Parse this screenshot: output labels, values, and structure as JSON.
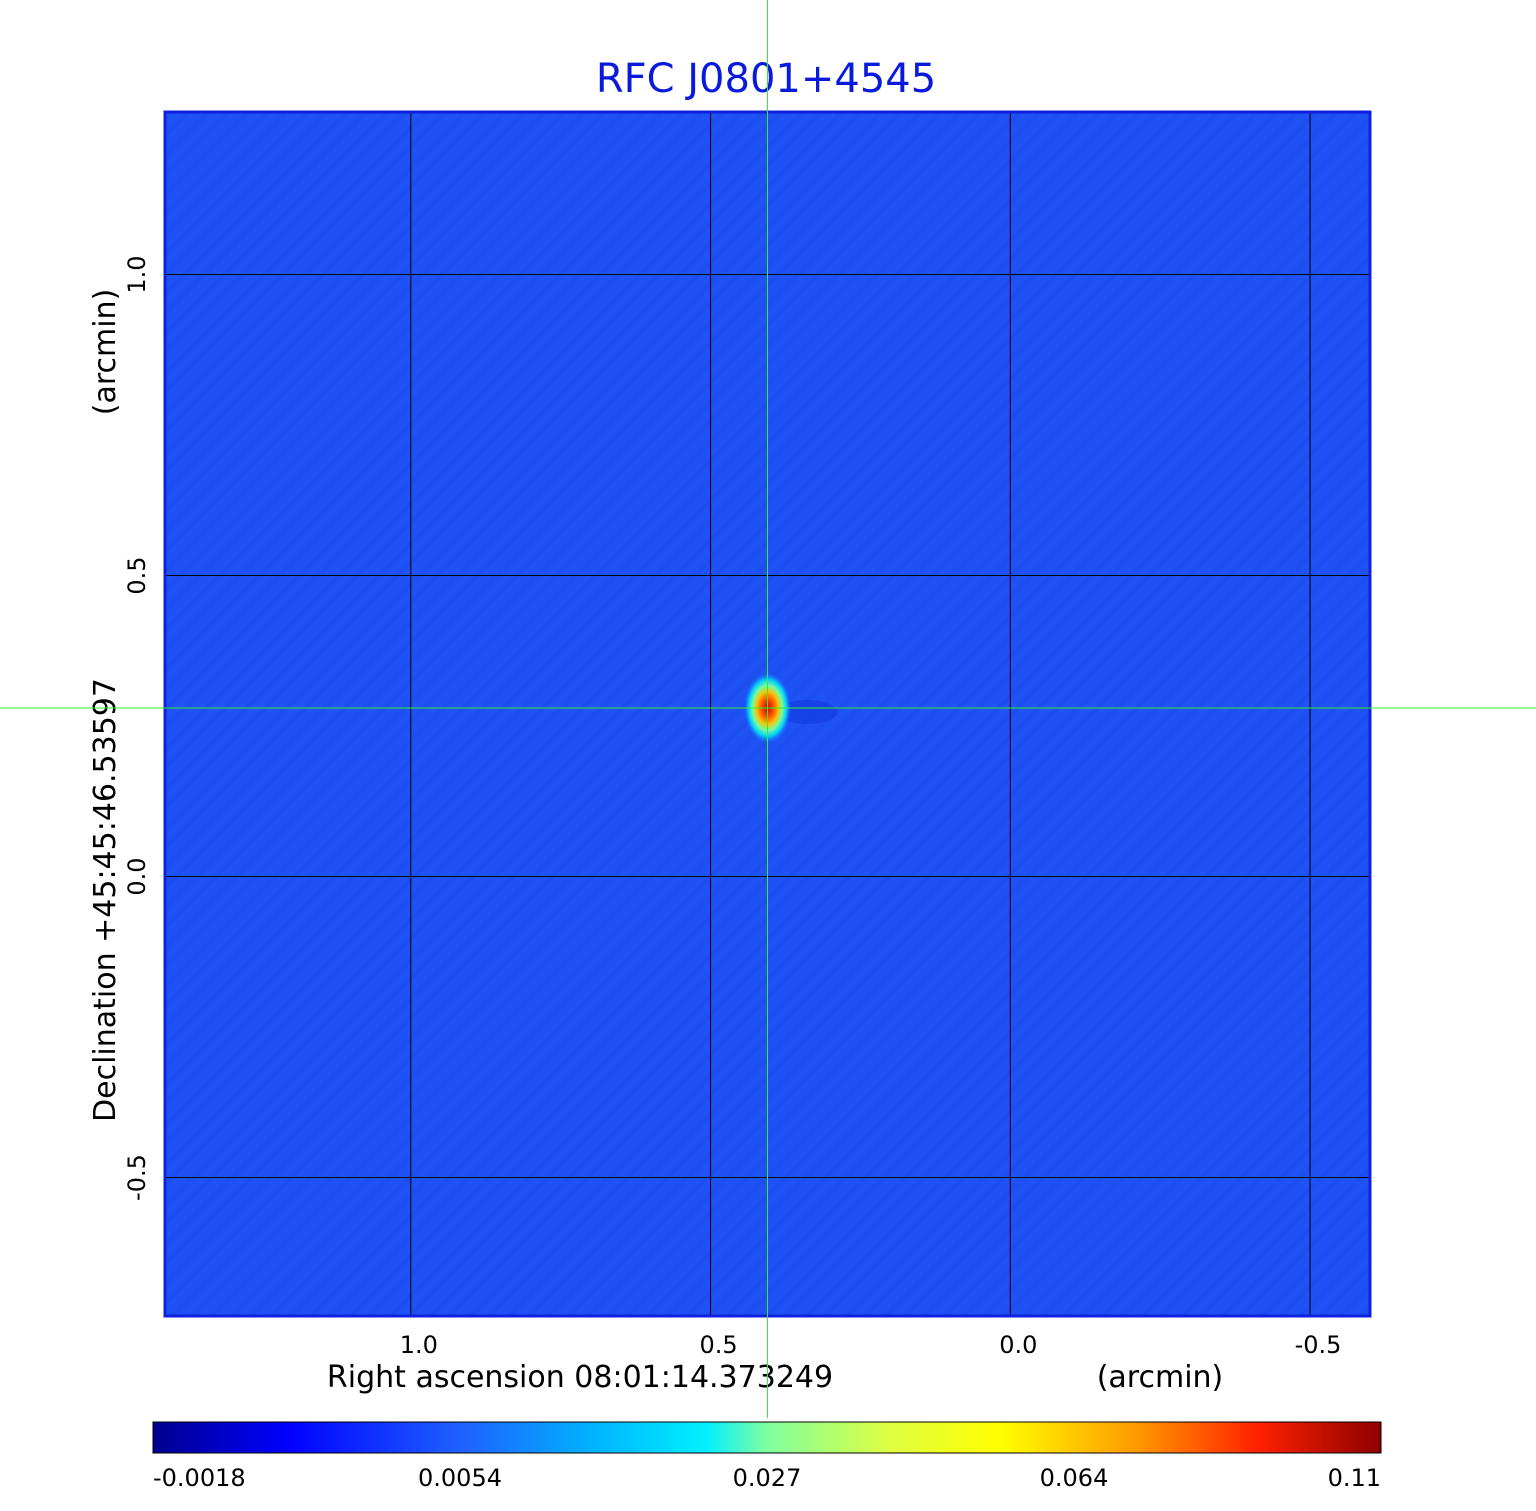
{
  "chart_data": {
    "type": "heatmap",
    "title": "RFC J0801+4545",
    "xlabel": "Right ascension  08:01:14.373249",
    "xunit": "(arcmin)",
    "ylabel": "Declination  +45:45:46.53597",
    "yunit": "(arcmin)",
    "xlim": [
      1.41,
      -0.6
    ],
    "ylim": [
      -0.73,
      1.27
    ],
    "x_ticks": [
      {
        "value": 1.0,
        "label": "1.0"
      },
      {
        "value": 0.5,
        "label": "0.5"
      },
      {
        "value": 0.0,
        "label": "0.0"
      },
      {
        "value": -0.5,
        "label": "-0.5"
      }
    ],
    "y_ticks": [
      {
        "value": 1.0,
        "label": "1.0"
      },
      {
        "value": 0.5,
        "label": "0.5"
      },
      {
        "value": 0.0,
        "label": "0.0"
      },
      {
        "value": -0.5,
        "label": "-0.5"
      }
    ],
    "grid": true,
    "crosshair": {
      "x": 0.405,
      "y": 0.28
    },
    "source_peak": {
      "x": 0.405,
      "y": 0.28,
      "value": 0.11
    },
    "background_level": 0.002,
    "colorbar": {
      "position": "bottom",
      "colormap": "jet",
      "ticks": [
        {
          "value": -0.0018,
          "label": "-0.0018"
        },
        {
          "value": 0.0054,
          "label": "0.0054"
        },
        {
          "value": 0.027,
          "label": "0.027"
        },
        {
          "value": 0.064,
          "label": "0.064"
        },
        {
          "value": 0.11,
          "label": "0.11"
        }
      ]
    },
    "colors": {
      "title": "#0a1adc",
      "frame": "#1020e0",
      "grid": "#000000",
      "crosshair": "#33ee33",
      "background": "#1f52f5"
    }
  }
}
